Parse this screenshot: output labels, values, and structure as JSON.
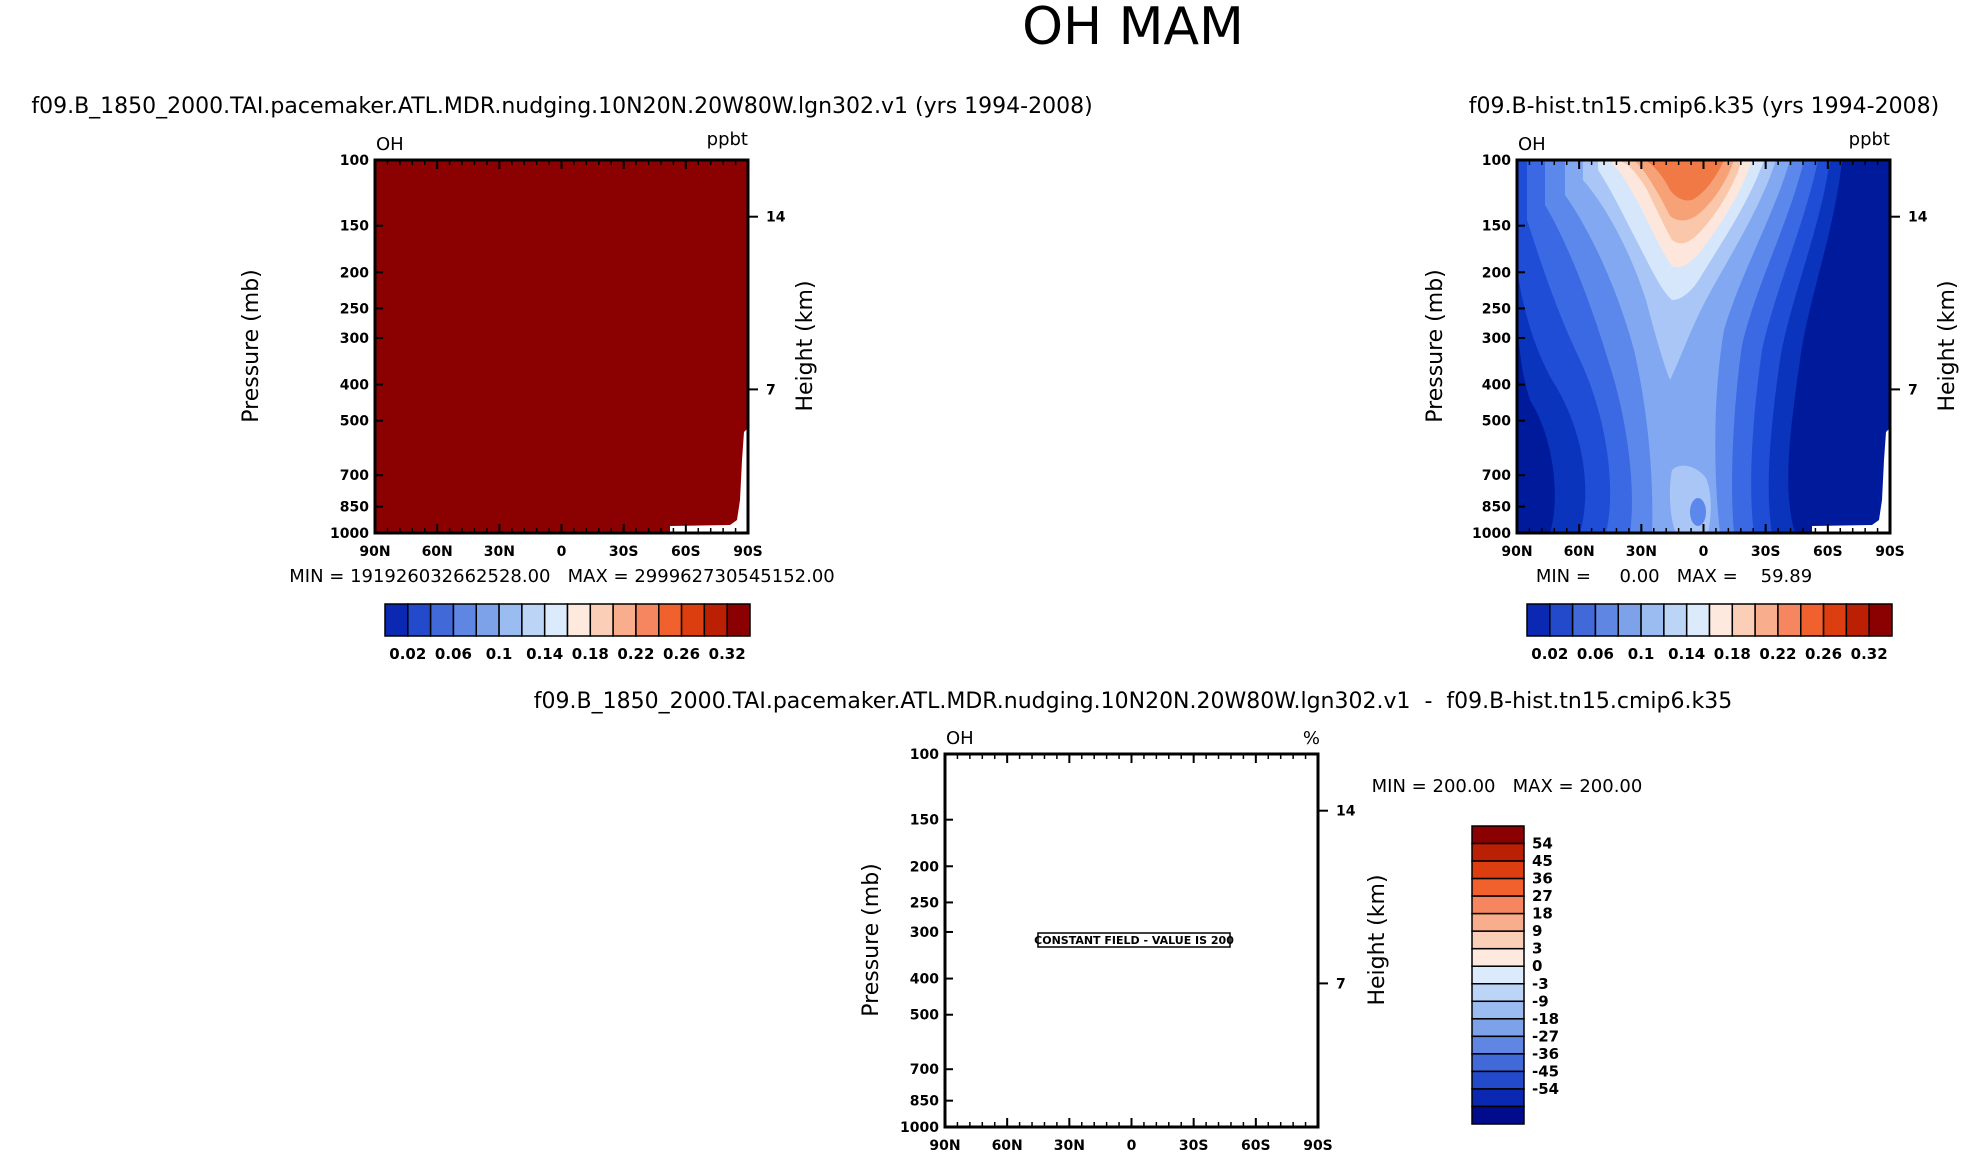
{
  "page": {
    "title": "OH  MAM"
  },
  "colors": {
    "frame": "#000000",
    "panel1_fill": "#8b0000",
    "positive_scale": [
      "#fde9dd",
      "#fbcfb7",
      "#f8ad8d",
      "#f58660",
      "#f1612e",
      "#dc3e10",
      "#bc2004",
      "#8b0000"
    ],
    "negative_scale": [
      "#dcebfb",
      "#bcd5f6",
      "#9bbcf0",
      "#7da2ea",
      "#5f86e2",
      "#4169d8",
      "#224acb",
      "#0a28b2",
      "#000c8c"
    ],
    "panel2_fields": [
      "#001a9c",
      "#0b34bd",
      "#1f4dd6",
      "#3a69e3",
      "#5c88ec",
      "#82a8f2",
      "#a9c6f7",
      "#d6e7fc",
      "#fde7dc",
      "#fbc7aa",
      "#f7a276",
      "#f17946"
    ]
  },
  "chart_data": [
    {
      "type": "heatmap",
      "title": "f09.B_1850_2000.TAI.pacemaker.ATL.MDR.nudging.10N20N.20W80W.lgn302.v1 (yrs 1994-2008)",
      "variable": "OH",
      "units": "ppbt",
      "ylabel": "Pressure (mb)",
      "ylabel_right": "Height (km)",
      "x_ticks": [
        "90N",
        "60N",
        "30N",
        "0",
        "30S",
        "60S",
        "90S"
      ],
      "y_ticks": [
        "100",
        "150",
        "200",
        "250",
        "300",
        "400",
        "500",
        "700",
        "850",
        "1000"
      ],
      "y_ticks_right": [
        "14",
        "7"
      ],
      "min_max": "MIN = 191926032662528.00   MAX = 299962730545152.00",
      "field": "uniform, exceeds top of color scale",
      "colorbar_labels": [
        "0.02",
        "0.06",
        "0.1",
        "0.14",
        "0.18",
        "0.22",
        "0.26",
        "0.32"
      ],
      "colorbar_levels": [
        0.02,
        0.04,
        0.06,
        0.08,
        0.1,
        0.12,
        0.14,
        0.16,
        0.18,
        0.2,
        0.22,
        0.24,
        0.26,
        0.28,
        0.3,
        0.32
      ]
    },
    {
      "type": "heatmap",
      "title": "f09.B-hist.tn15.cmip6.k35 (yrs 1994-2008)",
      "variable": "OH",
      "units": "ppbt",
      "ylabel": "Pressure (mb)",
      "ylabel_right": "Height (km)",
      "x_ticks": [
        "90N",
        "60N",
        "30N",
        "0",
        "30S",
        "60S",
        "90S"
      ],
      "y_ticks": [
        "100",
        "150",
        "200",
        "250",
        "300",
        "400",
        "500",
        "700",
        "850",
        "1000"
      ],
      "y_ticks_right": [
        "14",
        "7"
      ],
      "min_max": "MIN =     0.00   MAX =    59.89",
      "field": "maximum near tropics 0-30N at upper levels (100-200 mb), minimum at high southern latitudes",
      "colorbar_labels": [
        "0.02",
        "0.06",
        "0.1",
        "0.14",
        "0.18",
        "0.22",
        "0.26",
        "0.32"
      ],
      "colorbar_levels": [
        0.02,
        0.04,
        0.06,
        0.08,
        0.1,
        0.12,
        0.14,
        0.16,
        0.18,
        0.2,
        0.22,
        0.24,
        0.26,
        0.28,
        0.3,
        0.32
      ]
    },
    {
      "type": "heatmap",
      "title": "f09.B_1850_2000.TAI.pacemaker.ATL.MDR.nudging.10N20N.20W80W.lgn302.v1  -  f09.B-hist.tn15.cmip6.k35",
      "variable": "OH",
      "units": "%",
      "ylabel": "Pressure (mb)",
      "ylabel_right": "Height (km)",
      "x_ticks": [
        "90N",
        "60N",
        "30N",
        "0",
        "30S",
        "60S",
        "90S"
      ],
      "y_ticks": [
        "100",
        "150",
        "200",
        "250",
        "300",
        "400",
        "500",
        "700",
        "850",
        "1000"
      ],
      "y_ticks_right": [
        "14",
        "7"
      ],
      "min_max": "MIN = 200.00   MAX = 200.00",
      "annotation": "CONSTANT FIELD - VALUE IS 200",
      "colorbar_labels": [
        "54",
        "45",
        "36",
        "27",
        "18",
        "9",
        "3",
        "0",
        "-3",
        "-9",
        "-18",
        "-27",
        "-36",
        "-45",
        "-54"
      ],
      "colorbar_levels": [
        -54,
        -45,
        -36,
        -27,
        -18,
        -9,
        -3,
        0,
        3,
        9,
        18,
        27,
        36,
        45,
        54
      ]
    }
  ]
}
